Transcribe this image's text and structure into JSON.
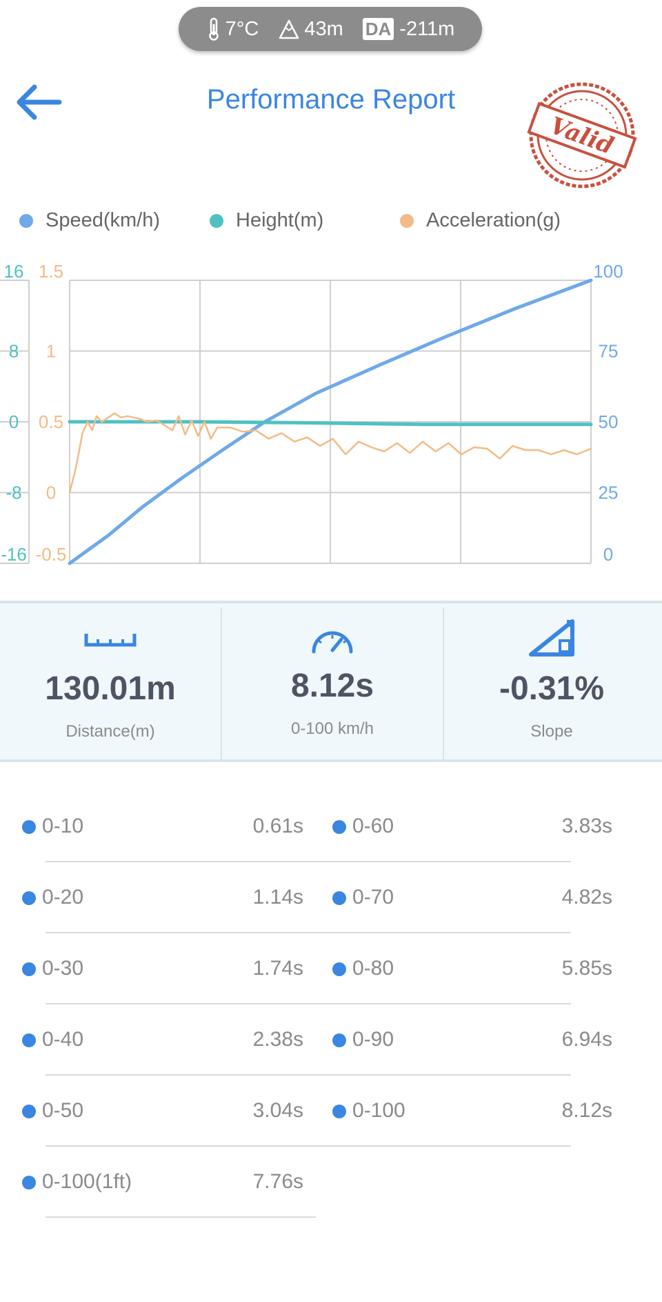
{
  "status_bar": {
    "temperature": "7°C",
    "altitude": "43m",
    "da_badge": "DA",
    "density_altitude": "-211m"
  },
  "header": {
    "title": "Performance Report",
    "stamp_text": "Valid"
  },
  "legend": [
    {
      "label": "Speed(km/h)",
      "color": "#6fa9e8"
    },
    {
      "label": "Height(m)",
      "color": "#4fc1c1"
    },
    {
      "label": "Acceleration(g)",
      "color": "#f3bb86"
    }
  ],
  "chart_data": {
    "type": "line",
    "axes": {
      "height_ticks": [
        "16",
        "8",
        "0",
        "-8",
        "-16"
      ],
      "accel_ticks": [
        "1.5",
        "1",
        "0.5",
        "0",
        "-0.5"
      ],
      "speed_ticks": [
        "100",
        "75",
        "50",
        "25",
        "0"
      ],
      "height_range": [
        -16,
        16
      ],
      "accel_range": [
        -0.5,
        1.5
      ],
      "speed_range": [
        0,
        100
      ],
      "x_range": [
        0,
        8.12
      ],
      "grid": true
    },
    "series": [
      {
        "name": "Speed(km/h)",
        "color": "#6fa9e8",
        "x": [
          0,
          0.61,
          1.14,
          1.74,
          2.38,
          3.04,
          3.83,
          4.82,
          5.85,
          6.94,
          8.12
        ],
        "values": [
          0,
          10,
          20,
          30,
          40,
          50,
          60,
          70,
          80,
          90,
          100
        ]
      },
      {
        "name": "Height(m)",
        "color": "#4fc1c1",
        "x": [
          0,
          2.0,
          3.5,
          4.6,
          5.5,
          8.12
        ],
        "values": [
          0,
          0,
          -0.1,
          -0.2,
          -0.3,
          -0.3
        ]
      },
      {
        "name": "Acceleration(g)",
        "color": "#f3bb86",
        "x": [
          0,
          0.1,
          0.2,
          0.28,
          0.35,
          0.42,
          0.5,
          0.6,
          0.7,
          0.8,
          0.9,
          1.0,
          1.1,
          1.2,
          1.35,
          1.5,
          1.6,
          1.7,
          1.8,
          1.9,
          2.0,
          2.1,
          2.2,
          2.3,
          2.5,
          2.7,
          2.9,
          3.1,
          3.3,
          3.5,
          3.7,
          3.9,
          4.1,
          4.3,
          4.5,
          4.7,
          4.9,
          5.1,
          5.3,
          5.5,
          5.7,
          5.9,
          6.1,
          6.3,
          6.5,
          6.7,
          6.9,
          7.1,
          7.3,
          7.5,
          7.7,
          7.9,
          8.12
        ],
        "values": [
          0,
          0.18,
          0.42,
          0.5,
          0.44,
          0.54,
          0.5,
          0.53,
          0.56,
          0.53,
          0.54,
          0.53,
          0.52,
          0.5,
          0.51,
          0.47,
          0.44,
          0.54,
          0.41,
          0.51,
          0.4,
          0.5,
          0.38,
          0.46,
          0.46,
          0.43,
          0.44,
          0.38,
          0.42,
          0.36,
          0.39,
          0.33,
          0.38,
          0.27,
          0.36,
          0.32,
          0.29,
          0.35,
          0.28,
          0.36,
          0.29,
          0.35,
          0.27,
          0.32,
          0.31,
          0.24,
          0.33,
          0.3,
          0.3,
          0.27,
          0.3,
          0.27,
          0.31
        ]
      }
    ]
  },
  "stats": [
    {
      "value": "130.01m",
      "label": "Distance(m)",
      "icon": "ruler-icon"
    },
    {
      "value": "8.12s",
      "label": "0-100 km/h",
      "icon": "speedometer-icon"
    },
    {
      "value": "-0.31%",
      "label": "Slope",
      "icon": "slope-icon"
    }
  ],
  "splits": [
    {
      "label": "0-10",
      "time": "0.61s"
    },
    {
      "label": "0-60",
      "time": "3.83s"
    },
    {
      "label": "0-20",
      "time": "1.14s"
    },
    {
      "label": "0-70",
      "time": "4.82s"
    },
    {
      "label": "0-30",
      "time": "1.74s"
    },
    {
      "label": "0-80",
      "time": "5.85s"
    },
    {
      "label": "0-40",
      "time": "2.38s"
    },
    {
      "label": "0-90",
      "time": "6.94s"
    },
    {
      "label": "0-50",
      "time": "3.04s"
    },
    {
      "label": "0-100",
      "time": "8.12s"
    },
    {
      "label": "0-100(1ft)",
      "time": "7.76s"
    }
  ]
}
